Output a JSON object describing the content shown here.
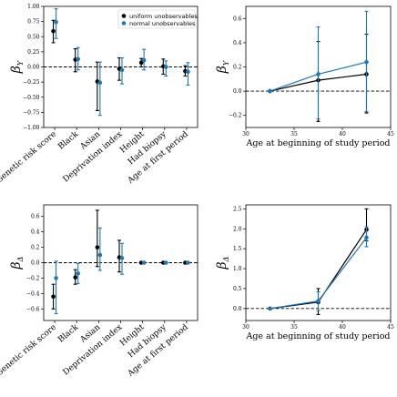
{
  "colors": {
    "uniform": "#000000",
    "normal": "#1f77b4"
  },
  "chart_data": [
    {
      "type": "scatter",
      "subtype": "errorbar-categorical",
      "ylabel": "β",
      "ylabel_sub": "Y",
      "ylim": [
        -1.0,
        1.0
      ],
      "yticks": [
        "1.00",
        "0.75",
        "0.50",
        "0.25",
        "0.00",
        "−0.25",
        "−0.50",
        "−0.75",
        "−1.00"
      ],
      "ytick_values": [
        1.0,
        0.75,
        0.5,
        0.25,
        0,
        -0.25,
        -0.5,
        -0.75,
        -1.0
      ],
      "categories": [
        "Genetic risk score",
        "Black",
        "Asian",
        "Deprivation index",
        "Height",
        "Had biopsy",
        "Age at first period"
      ],
      "legend": "top-right",
      "series": [
        {
          "name": "uniform unobservables",
          "values": [
            0.59,
            0.12,
            -0.24,
            -0.03,
            0.07,
            0.01,
            -0.07
          ],
          "lower": [
            0.4,
            -0.08,
            -0.72,
            -0.22,
            0.0,
            -0.12,
            -0.15
          ],
          "upper": [
            0.77,
            0.3,
            0.08,
            0.15,
            0.14,
            0.13,
            0.02
          ]
        },
        {
          "name": "normal unobservables",
          "values": [
            0.74,
            0.13,
            -0.26,
            -0.05,
            0.11,
            0.0,
            -0.08
          ],
          "lower": [
            0.47,
            -0.05,
            -0.8,
            -0.28,
            -0.05,
            -0.15,
            -0.3
          ],
          "upper": [
            0.96,
            0.32,
            0.08,
            0.15,
            0.29,
            0.1,
            0.07
          ]
        }
      ]
    },
    {
      "type": "line",
      "subtype": "errorbar-line",
      "ylabel": "β",
      "ylabel_sub": "Y",
      "xlabel": "Age at beginning of study period",
      "xlim": [
        30,
        45
      ],
      "ylim": [
        -0.3,
        0.7
      ],
      "xticks": [
        "30",
        "35",
        "40",
        "45"
      ],
      "xtick_values": [
        30,
        35,
        40,
        45
      ],
      "yticks": [
        "0.6",
        "0.4",
        "0.2",
        "0.0",
        "−0.2"
      ],
      "ytick_values": [
        0.6,
        0.4,
        0.2,
        0.0,
        -0.2
      ],
      "x": [
        32.5,
        37.5,
        42.5
      ],
      "series": [
        {
          "name": "uniform unobservables",
          "values": [
            0.0,
            0.09,
            0.14
          ],
          "lower": [
            0.0,
            -0.25,
            -0.18
          ],
          "upper": [
            0.0,
            0.41,
            0.47
          ]
        },
        {
          "name": "normal unobservables",
          "values": [
            0.0,
            0.14,
            0.24
          ],
          "lower": [
            0.0,
            -0.23,
            -0.17
          ],
          "upper": [
            0.0,
            0.53,
            0.66
          ]
        }
      ]
    },
    {
      "type": "scatter",
      "subtype": "errorbar-categorical",
      "ylabel": "β",
      "ylabel_sub": "Δ",
      "ylim": [
        -0.75,
        0.75
      ],
      "yticks": [
        "0.6",
        "0.4",
        "0.2",
        "0.0",
        "−0.2",
        "−0.4",
        "−0.6"
      ],
      "ytick_values": [
        0.6,
        0.4,
        0.2,
        0.0,
        -0.2,
        -0.4,
        -0.6
      ],
      "categories": [
        "Genetic risk score",
        "Black",
        "Asian",
        "Deprivation index",
        "Height",
        "Had biopsy",
        "Age at first period"
      ],
      "series": [
        {
          "name": "uniform unobservables",
          "values": [
            -0.44,
            -0.19,
            0.2,
            0.07,
            0.0,
            0.0,
            0.0
          ],
          "lower": [
            -0.6,
            -0.28,
            -0.05,
            -0.12,
            -0.01,
            -0.01,
            -0.01
          ],
          "upper": [
            -0.28,
            -0.09,
            0.68,
            0.29,
            0.01,
            0.01,
            0.01
          ]
        },
        {
          "name": "normal unobservables",
          "values": [
            -0.2,
            -0.14,
            0.1,
            0.06,
            0.0,
            0.0,
            0.0
          ],
          "lower": [
            -0.66,
            -0.27,
            -0.1,
            -0.15,
            -0.01,
            -0.01,
            -0.01
          ],
          "upper": [
            0.02,
            -0.01,
            0.45,
            0.25,
            0.01,
            0.01,
            0.01
          ]
        }
      ]
    },
    {
      "type": "line",
      "subtype": "errorbar-line",
      "ylabel": "β",
      "ylabel_sub": "Δ",
      "xlabel": "Age at beginning of study period",
      "xlim": [
        30,
        45
      ],
      "ylim": [
        -0.3,
        2.6
      ],
      "xticks": [
        "30",
        "35",
        "40",
        "45"
      ],
      "xtick_values": [
        30,
        35,
        40,
        45
      ],
      "yticks": [
        "2.5",
        "2.0",
        "1.5",
        "1.0",
        "0.5",
        "0.0"
      ],
      "ytick_values": [
        2.5,
        2.0,
        1.5,
        1.0,
        0.5,
        0.0
      ],
      "x": [
        32.5,
        37.5,
        42.5
      ],
      "series": [
        {
          "name": "uniform unobservables",
          "values": [
            0.0,
            0.16,
            1.98
          ],
          "lower": [
            0.0,
            -0.15,
            1.7
          ],
          "upper": [
            0.0,
            0.5,
            2.5
          ]
        },
        {
          "name": "normal unobservables",
          "values": [
            0.0,
            0.19,
            1.78
          ],
          "lower": [
            0.0,
            -0.05,
            1.55
          ],
          "upper": [
            0.0,
            0.42,
            2.05
          ]
        }
      ]
    }
  ]
}
